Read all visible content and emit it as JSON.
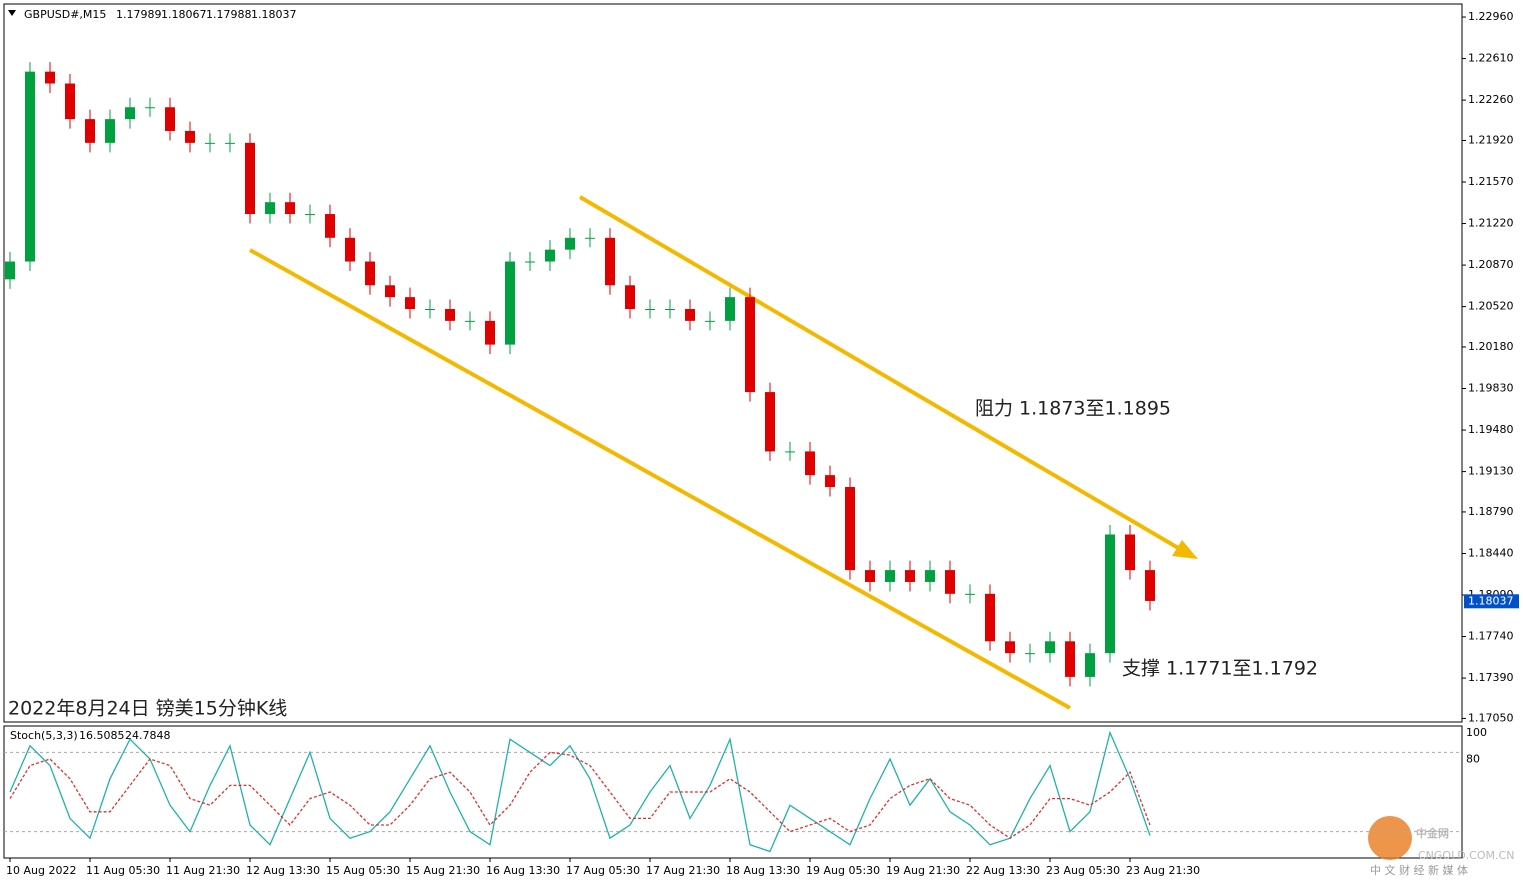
{
  "chart_data": [
    {
      "type": "candlestick",
      "symbol": "GBPUSD#,M15",
      "ohlc_header": [
        1.17989,
        1.18067,
        1.17988,
        1.18037
      ],
      "title": "2022年8月24日 镑美15分钟K线",
      "annotations": [
        "阻力 1.1873至1.1895",
        "支撑 1.1771至1.1792"
      ],
      "categories": [
        "10 Aug 2022",
        null,
        null,
        null,
        "11 Aug 05:30",
        null,
        null,
        null,
        "11 Aug 21:30",
        null,
        null,
        null,
        "12 Aug 13:30",
        null,
        null,
        null,
        "15 Aug 05:30",
        null,
        null,
        null,
        "15 Aug 21:30",
        null,
        null,
        null,
        "16 Aug 13:30",
        null,
        null,
        null,
        "17 Aug 05:30",
        null,
        null,
        null,
        "17 Aug 21:30",
        null,
        null,
        null,
        "18 Aug 13:30",
        null,
        null,
        null,
        "19 Aug 05:30",
        null,
        null,
        null,
        "19 Aug 21:30",
        null,
        null,
        null,
        "22 Aug 13:30",
        null,
        null,
        null,
        "23 Aug 05:30",
        null,
        null,
        null,
        "23 Aug 21:30",
        null
      ],
      "open": [
        1.2075,
        1.209,
        1.225,
        1.224,
        1.221,
        1.219,
        1.221,
        1.222,
        1.222,
        1.22,
        1.219,
        1.219,
        1.219,
        1.213,
        1.214,
        1.213,
        1.213,
        1.211,
        1.209,
        1.207,
        1.206,
        1.205,
        1.205,
        1.204,
        1.204,
        1.202,
        1.209,
        1.209,
        1.21,
        1.211,
        1.211,
        1.207,
        1.205,
        1.205,
        1.205,
        1.204,
        1.204,
        1.206,
        1.198,
        1.193,
        1.193,
        1.191,
        1.19,
        1.183,
        1.182,
        1.183,
        1.182,
        1.183,
        1.181,
        1.181,
        1.177,
        1.176,
        1.176,
        1.177,
        1.174,
        1.176,
        1.186,
        1.183
      ],
      "high": [
        1.2098,
        1.2258,
        1.2258,
        1.2248,
        1.2218,
        1.2218,
        1.2228,
        1.2228,
        1.2228,
        1.2208,
        1.2198,
        1.2198,
        1.2198,
        1.2148,
        1.2148,
        1.2138,
        1.2138,
        1.2118,
        1.2098,
        1.2078,
        1.2068,
        1.2058,
        1.2058,
        1.2048,
        1.2048,
        1.2098,
        1.2098,
        1.2108,
        1.2118,
        1.2118,
        1.2118,
        1.2078,
        1.2058,
        1.2058,
        1.2058,
        1.2048,
        1.2068,
        1.2068,
        1.1988,
        1.1938,
        1.1938,
        1.1918,
        1.1908,
        1.1838,
        1.1838,
        1.1838,
        1.1838,
        1.1838,
        1.1818,
        1.1818,
        1.1778,
        1.1768,
        1.1778,
        1.1778,
        1.1768,
        1.1868,
        1.1868,
        1.1838
      ],
      "low": [
        1.2067,
        1.2082,
        1.2232,
        1.2202,
        1.2182,
        1.2182,
        1.2202,
        1.2212,
        1.2192,
        1.2182,
        1.2182,
        1.2182,
        1.2122,
        1.2122,
        1.2122,
        1.2122,
        1.2102,
        1.2082,
        1.2062,
        1.2052,
        1.2042,
        1.2042,
        1.2032,
        1.2032,
        1.2012,
        1.2012,
        1.2082,
        1.2082,
        1.2092,
        1.2102,
        1.2062,
        1.2042,
        1.2042,
        1.2042,
        1.2032,
        1.2032,
        1.2032,
        1.1972,
        1.1922,
        1.1922,
        1.1902,
        1.1892,
        1.1822,
        1.1812,
        1.1812,
        1.1812,
        1.1812,
        1.1802,
        1.1802,
        1.1762,
        1.1752,
        1.1752,
        1.1752,
        1.1732,
        1.1732,
        1.1752,
        1.1822,
        1.1796
      ],
      "close": [
        1.209,
        1.225,
        1.224,
        1.221,
        1.219,
        1.221,
        1.222,
        1.222,
        1.22,
        1.219,
        1.219,
        1.219,
        1.213,
        1.214,
        1.213,
        1.213,
        1.211,
        1.209,
        1.207,
        1.206,
        1.205,
        1.205,
        1.204,
        1.204,
        1.202,
        1.209,
        1.209,
        1.21,
        1.211,
        1.211,
        1.207,
        1.205,
        1.205,
        1.205,
        1.204,
        1.204,
        1.206,
        1.198,
        1.193,
        1.193,
        1.191,
        1.19,
        1.183,
        1.182,
        1.183,
        1.182,
        1.183,
        1.181,
        1.181,
        1.177,
        1.176,
        1.176,
        1.177,
        1.174,
        1.176,
        1.186,
        1.183,
        1.1804
      ],
      "up_color": "#00a040",
      "down_color": "#e00000",
      "current_price": 1.18037,
      "ylim": [
        1.1702,
        1.2307
      ],
      "yticks": [
        {
          "value": 1.2296,
          "label": "1.22960"
        },
        {
          "value": 1.2261,
          "label": "1.22610"
        },
        {
          "value": 1.2226,
          "label": "1.22260"
        },
        {
          "value": 1.2192,
          "label": "1.21920"
        },
        {
          "value": 1.2157,
          "label": "1.21570"
        },
        {
          "value": 1.2122,
          "label": "1.21220"
        },
        {
          "value": 1.2087,
          "label": "1.20870"
        },
        {
          "value": 1.2052,
          "label": "1.20520"
        },
        {
          "value": 1.2018,
          "label": "1.20180"
        },
        {
          "value": 1.1983,
          "label": "1.19830"
        },
        {
          "value": 1.1948,
          "label": "1.19480"
        },
        {
          "value": 1.1913,
          "label": "1.19130"
        },
        {
          "value": 1.1879,
          "label": "1.18790"
        },
        {
          "value": 1.1844,
          "label": "1.18440"
        },
        {
          "value": 1.1809,
          "label": "1.18090"
        },
        {
          "value": 1.1774,
          "label": "1.17740"
        },
        {
          "value": 1.1739,
          "label": "1.17390"
        },
        {
          "value": 1.1705,
          "label": "1.17050"
        }
      ]
    },
    {
      "type": "line",
      "title": "Stoch(5,3,3)",
      "readings": [
        16.5085,
        24.7848
      ],
      "series": [
        {
          "color": "#20b2aa",
          "values": [
            50,
            85,
            70,
            30,
            15,
            60,
            90,
            75,
            40,
            20,
            55,
            85,
            25,
            10,
            45,
            80,
            30,
            15,
            20,
            35,
            60,
            85,
            50,
            20,
            10,
            90,
            80,
            70,
            85,
            60,
            15,
            25,
            50,
            70,
            30,
            55,
            90,
            10,
            5,
            40,
            30,
            20,
            10,
            45,
            75,
            40,
            60,
            35,
            25,
            10,
            15,
            45,
            70,
            20,
            35,
            95,
            60,
            17
          ]
        },
        {
          "color": "#e03030",
          "values": [
            45,
            70,
            75,
            60,
            35,
            35,
            55,
            75,
            70,
            45,
            40,
            55,
            55,
            40,
            25,
            45,
            50,
            40,
            25,
            25,
            40,
            60,
            65,
            50,
            25,
            40,
            65,
            80,
            78,
            70,
            50,
            30,
            30,
            50,
            50,
            50,
            60,
            50,
            35,
            20,
            25,
            30,
            20,
            25,
            45,
            55,
            60,
            45,
            40,
            25,
            15,
            25,
            45,
            45,
            40,
            50,
            65,
            25
          ]
        }
      ],
      "ylim": [
        0,
        100
      ],
      "yticks": [
        100,
        80
      ],
      "levels": [
        80,
        20
      ]
    }
  ],
  "watermark": {
    "logo": "中金网",
    "site": "CNGOLD.COM.CN",
    "slogan": "中 文 财 经 新 媒 体"
  }
}
